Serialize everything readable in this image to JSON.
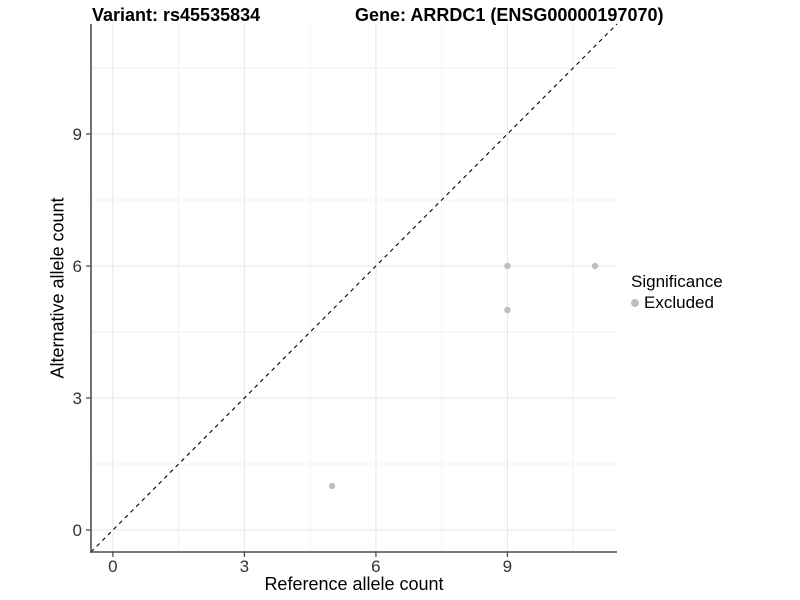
{
  "title": {
    "variant": "Variant: rs45535834",
    "gene": "Gene: ARRDC1 (ENSG00000197070)"
  },
  "axes": {
    "x_label": "Reference allele count",
    "y_label": "Alternative allele count"
  },
  "legend": {
    "title": "Significance",
    "items": [
      {
        "label": "Excluded",
        "color": "#bebebe"
      }
    ]
  },
  "chart_data": {
    "type": "scatter",
    "title": "Variant: rs45535834 — Gene: ARRDC1 (ENSG00000197070)",
    "xlabel": "Reference allele count",
    "ylabel": "Alternative allele count",
    "xlim": [
      -0.5,
      11.5
    ],
    "ylim": [
      -0.5,
      11.5
    ],
    "x_ticks": [
      0,
      3,
      6,
      9
    ],
    "y_ticks": [
      0,
      3,
      6,
      9
    ],
    "x_minor_ticks": [
      1.5,
      4.5,
      7.5,
      10.5
    ],
    "y_minor_ticks": [
      1.5,
      4.5,
      7.5,
      10.5
    ],
    "grid": true,
    "legend_position": "right",
    "series": [
      {
        "name": "Excluded",
        "color": "#bebebe",
        "marker": "circle",
        "points": [
          [
            5,
            1
          ],
          [
            9,
            5
          ],
          [
            9,
            6
          ],
          [
            11,
            6
          ]
        ]
      }
    ],
    "reference_line": {
      "type": "identity-diagonal",
      "from": [
        -0.5,
        -0.5
      ],
      "to": [
        11.5,
        11.5
      ],
      "style": "dashed",
      "color": "#000000"
    },
    "style": {
      "panel_background": "#ffffff",
      "grid_major_color": "#e6e6e6",
      "grid_minor_color": "#f2f2f2",
      "axis_line_color": "#4d4d4d",
      "tick_label_color": "#333333",
      "point_color": "#bebebe"
    }
  }
}
